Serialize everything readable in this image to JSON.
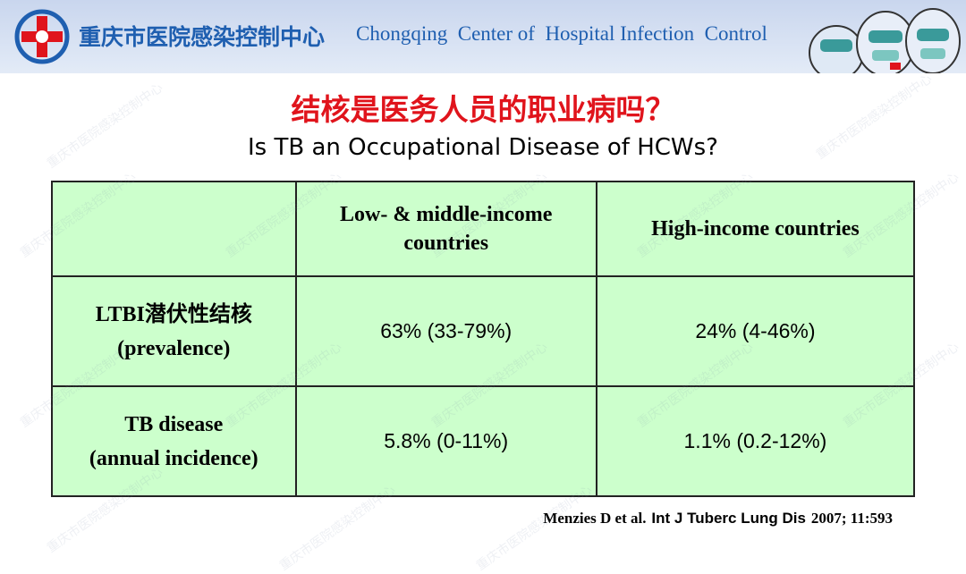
{
  "header": {
    "org_cn": "重庆市医院感染控制中心",
    "org_en": "Chongqing  Center of  Hospital Infection  Control"
  },
  "title_cn": "结核是医务人员的职业病吗？",
  "title_en": "Is TB an Occupational Disease of HCWs?",
  "table": {
    "columns": [
      "",
      "Low- & middle-income countries",
      "High-income countries"
    ],
    "rows": [
      [
        [
          "LTBI潜伏性结核",
          "(prevalence)"
        ],
        "63% (33-79%)",
        "24% (4-46%)"
      ],
      [
        [
          "TB disease",
          "(annual incidence)"
        ],
        "5.8% (0-11%)",
        "1.1% (0.2-12%)"
      ]
    ]
  },
  "citation": {
    "authors": "Menzies D et al.",
    "journal": "Int J Tuberc Lung Dis",
    "ref": "2007; 11:593"
  }
}
